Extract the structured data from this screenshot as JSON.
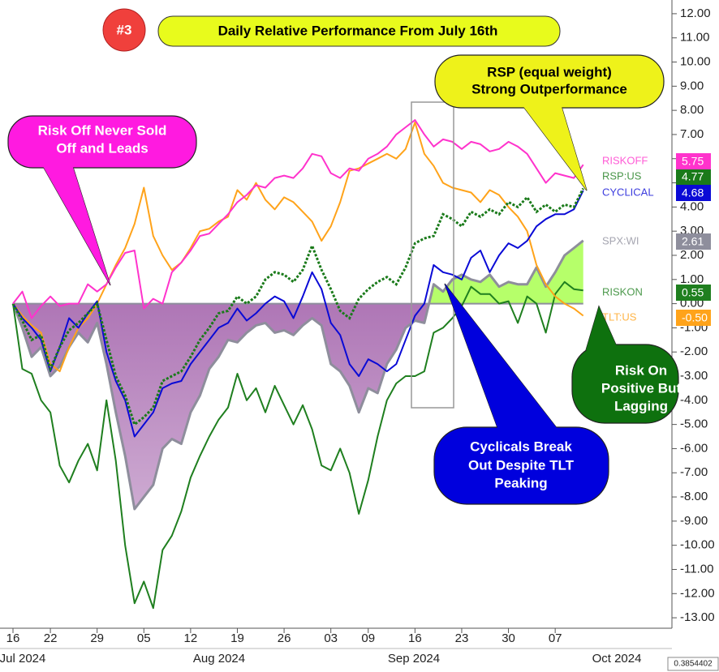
{
  "chart_data": {
    "type": "line",
    "title": "Daily Relative Performance From July 16th",
    "badge": "#3",
    "categories": [
      "16",
      null,
      null,
      null,
      "22",
      null,
      null,
      null,
      null,
      "29",
      null,
      null,
      null,
      null,
      "05",
      null,
      null,
      null,
      null,
      "12",
      null,
      null,
      null,
      null,
      "19",
      null,
      null,
      null,
      null,
      "26",
      null,
      null,
      null,
      null,
      "03",
      null,
      null,
      null,
      "09",
      null,
      null,
      null,
      null,
      "16",
      null,
      null,
      null,
      null,
      "23",
      null,
      null,
      null,
      null,
      "30",
      null,
      null,
      null,
      null,
      "07",
      null,
      null,
      null
    ],
    "x_group_labels": [
      "Jul 2024",
      "Aug 2024",
      "Sep 2024",
      "Oct 2024"
    ],
    "ylim": [
      -13.5,
      12.5
    ],
    "yticks": [
      {
        "value": 12,
        "label": "12.00"
      },
      {
        "value": 11,
        "label": "11.00"
      },
      {
        "value": 10,
        "label": "10.00"
      },
      {
        "value": 9,
        "label": "9.00"
      },
      {
        "value": 8,
        "label": "8.00"
      },
      {
        "value": 7,
        "label": "7.00"
      },
      {
        "value": 6,
        "label": "6.00"
      },
      {
        "value": 5,
        "label": "5.00"
      },
      {
        "value": 4,
        "label": "4.00"
      },
      {
        "value": 3,
        "label": "3.00"
      },
      {
        "value": 2,
        "label": "2.00"
      },
      {
        "value": 1,
        "label": "1.00"
      },
      {
        "value": 0,
        "label": "0.00"
      },
      {
        "value": -1,
        "label": "-1.00"
      },
      {
        "value": -2,
        "label": "-2.00"
      },
      {
        "value": -3,
        "label": "-3.00"
      },
      {
        "value": -4,
        "label": "-4.00"
      },
      {
        "value": -5,
        "label": "-5.00"
      },
      {
        "value": -6,
        "label": "-6.00"
      },
      {
        "value": -7,
        "label": "-7.00"
      },
      {
        "value": -8,
        "label": "-8.00"
      },
      {
        "value": -9,
        "label": "-9.00"
      },
      {
        "value": -10,
        "label": "-10.00"
      },
      {
        "value": -11,
        "label": "-11.00"
      },
      {
        "value": -12,
        "label": "-12.00"
      },
      {
        "value": -13,
        "label": "-13.00"
      }
    ],
    "series": [
      {
        "name": "SPX:WI",
        "style": "area",
        "color": "#8e8e9c",
        "fill_above": "#b6ff6a",
        "fill_below": "#a566ad",
        "end_label": "2.61",
        "values": [
          0,
          -1.0,
          -2.2,
          -1.8,
          -3.0,
          -2.6,
          -1.8,
          -1.2,
          -1.6,
          -0.8,
          -2.5,
          -4.5,
          -6.3,
          -8.5,
          -8.0,
          -7.5,
          -6.0,
          -5.6,
          -5.8,
          -4.5,
          -3.8,
          -2.7,
          -2.2,
          -1.5,
          -1.6,
          -1.2,
          -0.9,
          -0.8,
          -1.2,
          -1.1,
          -1.3,
          -0.9,
          -0.6,
          -0.9,
          -2.5,
          -2.8,
          -3.4,
          -4.5,
          -3.5,
          -3.7,
          -2.5,
          -1.9,
          -1.0,
          -0.7,
          -0.8,
          0.8,
          0.5,
          1.0,
          1.2,
          1.0,
          0.9,
          1.2,
          0.7,
          0.9,
          0.8,
          0.8,
          1.5,
          0.7,
          1.3,
          2.0,
          2.3,
          2.61
        ]
      },
      {
        "name": "RISKON",
        "style": "solid",
        "color": "#1f7f1f",
        "end_label": "0.55",
        "values": [
          0,
          -2.7,
          -2.9,
          -4.0,
          -4.5,
          -6.7,
          -7.4,
          -6.5,
          -5.8,
          -6.9,
          -4.0,
          -6.5,
          -10.0,
          -12.4,
          -11.5,
          -12.6,
          -10.2,
          -9.6,
          -8.6,
          -7.2,
          -6.3,
          -5.5,
          -4.8,
          -4.3,
          -2.9,
          -4.0,
          -3.5,
          -4.5,
          -3.4,
          -4.2,
          -5.0,
          -4.2,
          -5.2,
          -6.7,
          -6.9,
          -6.0,
          -7.0,
          -8.7,
          -7.3,
          -5.5,
          -4.0,
          -3.3,
          -3.0,
          -3.0,
          -2.8,
          -1.2,
          -1.0,
          -0.6,
          -0.1,
          0.7,
          0.4,
          0.4,
          0.0,
          0.1,
          -0.8,
          0.3,
          0.0,
          -1.2,
          0.4,
          0.9,
          0.6,
          0.55
        ]
      },
      {
        "name": "TLT:US",
        "style": "solid",
        "color": "#ffa31a",
        "end_label": "-0.50",
        "values": [
          0,
          -0.5,
          -0.9,
          -1.2,
          -2.5,
          -2.8,
          -1.8,
          -1.0,
          -0.6,
          0.0,
          0.8,
          1.6,
          2.3,
          3.3,
          4.8,
          2.8,
          2.0,
          1.4,
          1.7,
          2.3,
          3.0,
          3.1,
          3.4,
          3.6,
          4.7,
          4.3,
          5.0,
          4.3,
          3.9,
          4.4,
          4.2,
          3.8,
          3.4,
          2.6,
          3.2,
          4.2,
          5.5,
          5.6,
          5.8,
          6.0,
          6.2,
          6.0,
          6.4,
          7.5,
          6.2,
          5.7,
          5.0,
          4.8,
          4.7,
          4.6,
          4.2,
          4.7,
          4.5,
          4.0,
          3.6,
          3.0,
          1.6,
          0.8,
          0.3,
          0.0,
          -0.2,
          -0.5
        ]
      },
      {
        "name": "CYCLICAL",
        "style": "solid",
        "color": "#0a0ad6",
        "end_label": "4.68",
        "values": [
          0,
          -0.6,
          -1.0,
          -1.5,
          -2.8,
          -1.8,
          -0.6,
          -1.0,
          -0.4,
          0.1,
          -2.0,
          -3.2,
          -4.0,
          -5.5,
          -5.0,
          -4.5,
          -3.5,
          -3.3,
          -3.2,
          -2.5,
          -2.0,
          -1.5,
          -1.0,
          -0.8,
          -0.2,
          -0.7,
          -0.4,
          0.0,
          0.3,
          0.1,
          -0.6,
          0.3,
          1.3,
          0.6,
          -0.8,
          -1.3,
          -2.5,
          -3.0,
          -2.3,
          -2.5,
          -2.8,
          -2.5,
          -1.5,
          -0.5,
          0.0,
          1.6,
          1.3,
          1.2,
          1.0,
          1.9,
          2.2,
          1.3,
          2.0,
          2.5,
          2.3,
          2.6,
          3.2,
          3.5,
          3.7,
          3.7,
          3.9,
          4.68
        ]
      },
      {
        "name": "RSP:US",
        "style": "dotted",
        "color": "#1a7a1a",
        "end_label": "4.77",
        "values": [
          0,
          -0.7,
          -1.5,
          -1.3,
          -2.7,
          -1.8,
          -1.1,
          -0.8,
          -0.4,
          0.0,
          -1.5,
          -3.0,
          -3.8,
          -5.0,
          -4.7,
          -4.3,
          -3.2,
          -3.0,
          -2.8,
          -2.2,
          -1.5,
          -1.0,
          -0.4,
          -0.3,
          0.3,
          0.0,
          0.3,
          1.0,
          1.3,
          1.2,
          0.9,
          1.4,
          2.4,
          1.4,
          0.6,
          -0.3,
          -0.6,
          0.2,
          0.6,
          0.9,
          1.1,
          0.8,
          1.5,
          2.5,
          2.7,
          2.8,
          3.7,
          3.5,
          3.2,
          3.8,
          3.6,
          3.9,
          3.7,
          4.2,
          4.0,
          4.4,
          3.8,
          4.1,
          3.8,
          4.1,
          4.0,
          4.77
        ]
      },
      {
        "name": "RISKOFF",
        "style": "solid",
        "color": "#ff33cc",
        "end_label": "5.75",
        "values": [
          0,
          0.5,
          -0.6,
          -0.1,
          0.3,
          -0.1,
          0.0,
          0.0,
          0.8,
          0.5,
          0.8,
          1.5,
          2.1,
          2.2,
          -0.2,
          0.2,
          0.0,
          1.3,
          1.7,
          2.2,
          2.8,
          2.9,
          3.3,
          3.7,
          4.2,
          4.5,
          4.9,
          4.8,
          5.2,
          5.3,
          5.2,
          5.6,
          6.2,
          6.1,
          5.4,
          5.2,
          5.6,
          5.5,
          6.0,
          6.2,
          6.5,
          7.0,
          7.3,
          7.6,
          7.0,
          6.5,
          6.8,
          6.7,
          6.4,
          6.7,
          6.6,
          6.3,
          6.4,
          6.7,
          6.5,
          6.2,
          5.6,
          5.0,
          5.4,
          5.3,
          5.2,
          5.75
        ]
      }
    ],
    "annotations": [
      {
        "lines": [
          "RSP (equal weight)",
          "Strong Outperformance"
        ],
        "color": "#eef21a",
        "text_color": "#000000"
      },
      {
        "lines": [
          "Risk Off Never Sold",
          "Off and Leads"
        ],
        "color": "#ff1ae0",
        "text_color": "#ffffff"
      },
      {
        "lines": [
          "Cyclicals Break",
          "Out Despite TLT",
          "Peaking"
        ],
        "color": "#0000dd",
        "text_color": "#ffffff"
      },
      {
        "lines": [
          "Risk On",
          "Positive But",
          "Lagging"
        ],
        "color": "#0e710e",
        "text_color": "#ffffff"
      }
    ],
    "footer_value": 0.3854402
  }
}
